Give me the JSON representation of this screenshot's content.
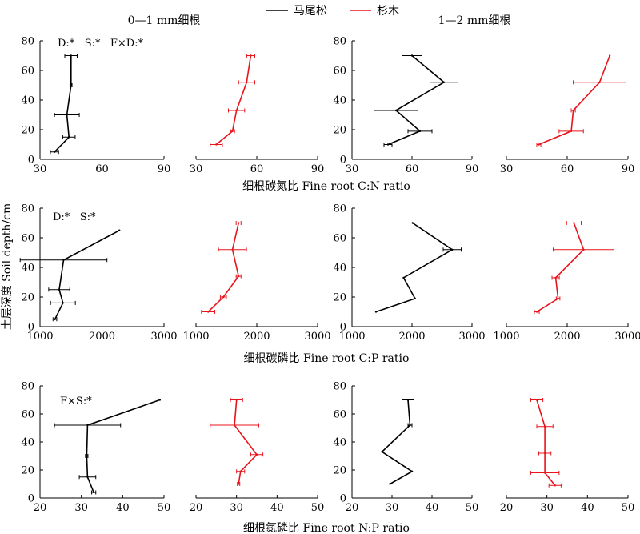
{
  "legend": {
    "items": [
      {
        "label": "马尾松",
        "color": "#000000"
      },
      {
        "label": "杉木",
        "color": "#e8141b"
      }
    ]
  },
  "column_titles": [
    "0—1 mm细根",
    "1—2 mm细根"
  ],
  "row_labels": [
    "细根碳氮比 Fine root C:N ratio",
    "细根碳磷比 Fine root C:P ratio",
    "细根氮磷比 Fine root N:P ratio"
  ],
  "ylabel": "土层深度 Soil depth/cm",
  "annotations": [
    "D:*   S:*   F×D:*",
    "D:*   S:*",
    "F×S:*"
  ],
  "chart_data": [
    {
      "type": "line",
      "row": 0,
      "col": 0,
      "color": "#000000",
      "xlim": [
        30,
        90
      ],
      "xticks": [
        30,
        60,
        90
      ],
      "ylim": [
        0,
        80
      ],
      "yticks": [
        0,
        20,
        40,
        60,
        80
      ],
      "points": [
        {
          "x": 37,
          "y": 5,
          "err": 2
        },
        {
          "x": 44,
          "y": 15,
          "err": 3
        },
        {
          "x": 43,
          "y": 30,
          "err": 6
        },
        {
          "x": 45,
          "y": 50,
          "err": 0.5
        },
        {
          "x": 45,
          "y": 70,
          "err": 3
        }
      ]
    },
    {
      "type": "line",
      "row": 0,
      "col": 1,
      "color": "#e8141b",
      "xlim": [
        30,
        90
      ],
      "xticks": [
        30,
        60,
        90
      ],
      "ylim": [
        0,
        80
      ],
      "yticks": [],
      "points": [
        {
          "x": 40,
          "y": 10,
          "err": 3
        },
        {
          "x": 48,
          "y": 19,
          "err": 1
        },
        {
          "x": 50,
          "y": 33,
          "err": 4
        },
        {
          "x": 55,
          "y": 52,
          "err": 4
        },
        {
          "x": 57,
          "y": 70,
          "err": 2
        }
      ]
    },
    {
      "type": "line",
      "row": 0,
      "col": 2,
      "color": "#000000",
      "xlim": [
        30,
        90
      ],
      "xticks": [
        30,
        60,
        90
      ],
      "ylim": [
        0,
        80
      ],
      "yticks": [
        0,
        20,
        40,
        60,
        80
      ],
      "points": [
        {
          "x": 48,
          "y": 10,
          "err": 2
        },
        {
          "x": 64,
          "y": 19,
          "err": 6
        },
        {
          "x": 52,
          "y": 33,
          "err": 11
        },
        {
          "x": 76,
          "y": 52,
          "err": 7
        },
        {
          "x": 60,
          "y": 70,
          "err": 5
        }
      ]
    },
    {
      "type": "line",
      "row": 0,
      "col": 3,
      "color": "#e8141b",
      "xlim": [
        30,
        90
      ],
      "xticks": [
        30,
        60,
        90
      ],
      "ylim": [
        0,
        80
      ],
      "yticks": [],
      "points": [
        {
          "x": 46,
          "y": 10,
          "err": 1
        },
        {
          "x": 62,
          "y": 19,
          "err": 6
        },
        {
          "x": 63,
          "y": 33,
          "err": 1
        },
        {
          "x": 76,
          "y": 52,
          "err": 13
        },
        {
          "x": 81,
          "y": 70,
          "err": 0
        }
      ]
    },
    {
      "type": "line",
      "row": 1,
      "col": 0,
      "color": "#000000",
      "xlim": [
        1000,
        3000
      ],
      "xticks": [
        1000,
        2000,
        3000
      ],
      "ylim": [
        0,
        80
      ],
      "yticks": [
        0,
        20,
        40,
        60,
        80
      ],
      "points": [
        {
          "x": 1240,
          "y": 5,
          "err": 30
        },
        {
          "x": 1370,
          "y": 16,
          "err": 200
        },
        {
          "x": 1310,
          "y": 25,
          "err": 170
        },
        {
          "x": 1380,
          "y": 45,
          "err": 700
        },
        {
          "x": 2280,
          "y": 65,
          "err": 0
        }
      ]
    },
    {
      "type": "line",
      "row": 1,
      "col": 1,
      "color": "#e8141b",
      "xlim": [
        1000,
        3000
      ],
      "xticks": [
        1000,
        2000,
        3000
      ],
      "ylim": [
        0,
        80
      ],
      "yticks": [],
      "points": [
        {
          "x": 1200,
          "y": 10,
          "err": 110
        },
        {
          "x": 1450,
          "y": 20,
          "err": 50
        },
        {
          "x": 1700,
          "y": 34,
          "err": 40
        },
        {
          "x": 1600,
          "y": 52,
          "err": 230
        },
        {
          "x": 1700,
          "y": 70,
          "err": 40
        }
      ]
    },
    {
      "type": "line",
      "row": 1,
      "col": 2,
      "color": "#000000",
      "xlim": [
        1000,
        3000
      ],
      "xticks": [
        1000,
        2000,
        3000
      ],
      "ylim": [
        0,
        80
      ],
      "yticks": [
        0,
        20,
        40,
        60,
        80
      ],
      "points": [
        {
          "x": 1400,
          "y": 10,
          "err": 0
        },
        {
          "x": 2050,
          "y": 19,
          "err": 0
        },
        {
          "x": 1860,
          "y": 33,
          "err": 0
        },
        {
          "x": 2670,
          "y": 52,
          "err": 150
        },
        {
          "x": 2010,
          "y": 70,
          "err": 0
        }
      ]
    },
    {
      "type": "line",
      "row": 1,
      "col": 3,
      "color": "#e8141b",
      "xlim": [
        1000,
        3000
      ],
      "xticks": [
        1000,
        2000,
        3000
      ],
      "ylim": [
        0,
        80
      ],
      "yticks": [],
      "points": [
        {
          "x": 1500,
          "y": 10,
          "err": 40
        },
        {
          "x": 1850,
          "y": 19,
          "err": 30
        },
        {
          "x": 1810,
          "y": 33,
          "err": 60
        },
        {
          "x": 2270,
          "y": 52,
          "err": 500
        },
        {
          "x": 2110,
          "y": 70,
          "err": 120
        }
      ]
    },
    {
      "type": "line",
      "row": 2,
      "col": 0,
      "color": "#000000",
      "xlim": [
        20,
        50
      ],
      "xticks": [
        20,
        30,
        40,
        50
      ],
      "ylim": [
        0,
        80
      ],
      "yticks": [
        0,
        20,
        40,
        60,
        80
      ],
      "points": [
        {
          "x": 33,
          "y": 4,
          "err": 0.5
        },
        {
          "x": 31.5,
          "y": 15,
          "err": 2
        },
        {
          "x": 31.3,
          "y": 30,
          "err": 0.3
        },
        {
          "x": 31.5,
          "y": 52,
          "err": 8
        },
        {
          "x": 49,
          "y": 70,
          "err": 0
        }
      ]
    },
    {
      "type": "line",
      "row": 2,
      "col": 1,
      "color": "#e8141b",
      "xlim": [
        20,
        50
      ],
      "xticks": [
        20,
        30,
        40,
        50
      ],
      "ylim": [
        0,
        80
      ],
      "yticks": [],
      "points": [
        {
          "x": 30.5,
          "y": 10,
          "err": 0.3
        },
        {
          "x": 31,
          "y": 19,
          "err": 1
        },
        {
          "x": 35,
          "y": 31,
          "err": 1.5
        },
        {
          "x": 29.5,
          "y": 52,
          "err": 6
        },
        {
          "x": 30,
          "y": 70,
          "err": 1.5
        }
      ]
    },
    {
      "type": "line",
      "row": 2,
      "col": 2,
      "color": "#000000",
      "xlim": [
        20,
        50
      ],
      "xticks": [
        20,
        30,
        40,
        50
      ],
      "ylim": [
        0,
        80
      ],
      "yticks": [
        0,
        20,
        40,
        60,
        80
      ],
      "points": [
        {
          "x": 29.5,
          "y": 10,
          "err": 1
        },
        {
          "x": 35,
          "y": 19,
          "err": 0
        },
        {
          "x": 27.5,
          "y": 33,
          "err": 0
        },
        {
          "x": 34.5,
          "y": 52,
          "err": 0.5
        },
        {
          "x": 34,
          "y": 70,
          "err": 1.5
        }
      ]
    },
    {
      "type": "line",
      "row": 2,
      "col": 3,
      "color": "#e8141b",
      "xlim": [
        20,
        50
      ],
      "xticks": [
        20,
        30,
        40,
        50
      ],
      "ylim": [
        0,
        80
      ],
      "yticks": [],
      "points": [
        {
          "x": 32,
          "y": 9,
          "err": 1.5
        },
        {
          "x": 29.5,
          "y": 18,
          "err": 3.5
        },
        {
          "x": 29.5,
          "y": 32,
          "err": 1.5
        },
        {
          "x": 29.5,
          "y": 51,
          "err": 2
        },
        {
          "x": 27.5,
          "y": 70,
          "err": 1.5
        }
      ]
    }
  ]
}
